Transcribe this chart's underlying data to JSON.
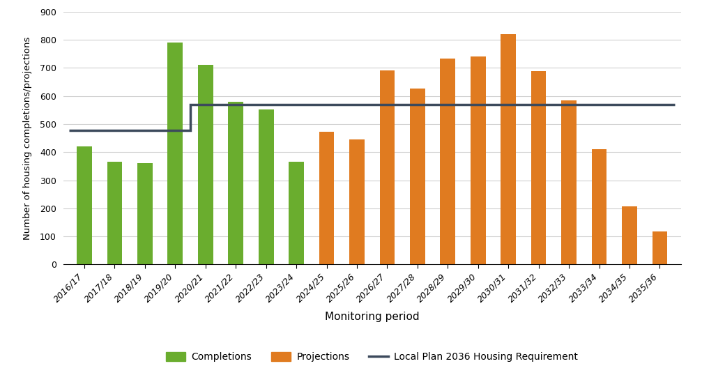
{
  "categories": [
    "2016/17",
    "2017/18",
    "2018/19",
    "2019/20",
    "2020/21",
    "2021/22",
    "2022/23",
    "2023/24",
    "2024/25",
    "2025/26",
    "2026/27",
    "2027/28",
    "2028/29",
    "2029/30",
    "2030/31",
    "2031/32",
    "2032/33",
    "2033/34",
    "2034/35",
    "2035/36"
  ],
  "completions": [
    420,
    367,
    360,
    790,
    710,
    580,
    552,
    365,
    null,
    null,
    null,
    null,
    null,
    null,
    null,
    null,
    null,
    null,
    null,
    null
  ],
  "projections": [
    null,
    null,
    null,
    null,
    null,
    null,
    null,
    null,
    473,
    446,
    690,
    627,
    733,
    740,
    820,
    688,
    585,
    411,
    207,
    118
  ],
  "requirement_line_x": [
    0,
    3,
    3,
    4,
    4,
    19
  ],
  "requirement_line_y": [
    478,
    478,
    478,
    478,
    570,
    570
  ],
  "requirement_line_points": [
    [
      0,
      478
    ],
    [
      3,
      478
    ],
    [
      4,
      478
    ],
    [
      4,
      570
    ],
    [
      5,
      570
    ],
    [
      19,
      570
    ]
  ],
  "completions_color": "#6aad2e",
  "projections_color": "#e07b20",
  "requirement_color": "#3c4a5c",
  "ylabel": "Number of housing completions/projections",
  "xlabel": "Monitoring period",
  "ylim": [
    0,
    900
  ],
  "yticks": [
    0,
    100,
    200,
    300,
    400,
    500,
    600,
    700,
    800,
    900
  ],
  "background_color": "#ffffff",
  "grid_color": "#d0d0d0",
  "legend_labels": [
    "Completions",
    "Projections",
    "Local Plan 2036 Housing Requirement"
  ],
  "figsize": [
    10.07,
    5.58
  ],
  "dpi": 100,
  "bar_width": 0.5
}
